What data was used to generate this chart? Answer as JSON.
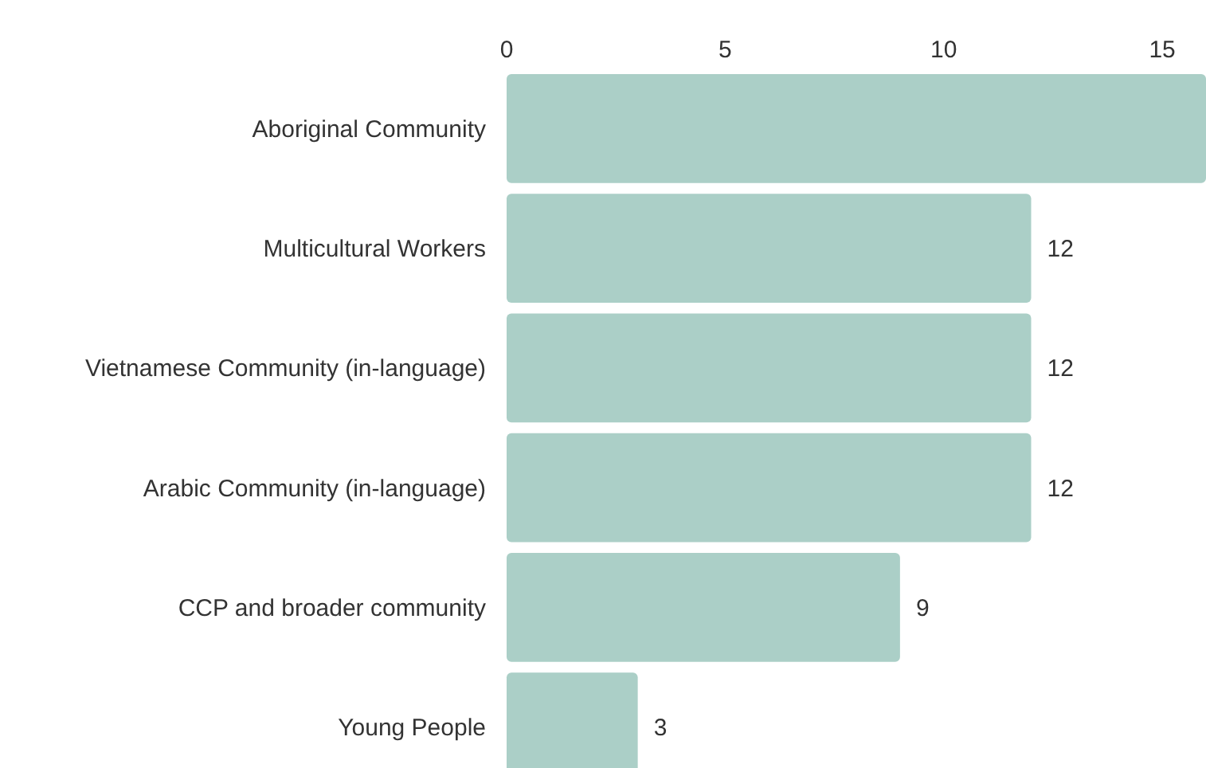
{
  "chart_data": {
    "type": "bar",
    "orientation": "horizontal",
    "categories": [
      "Aboriginal Community",
      "Multicultural Workers",
      "Vietnamese Community (in-language)",
      "Arabic Community (in-language)",
      "CCP and broader community",
      "Young People"
    ],
    "values": [
      16,
      12,
      12,
      12,
      9,
      3
    ],
    "value_labels": [
      null,
      "12",
      "12",
      "12",
      "9",
      "3"
    ],
    "color": "#abcfc7",
    "xlim": [
      0,
      16
    ],
    "xticks": [
      0,
      5,
      10,
      15
    ],
    "grid": false
  }
}
